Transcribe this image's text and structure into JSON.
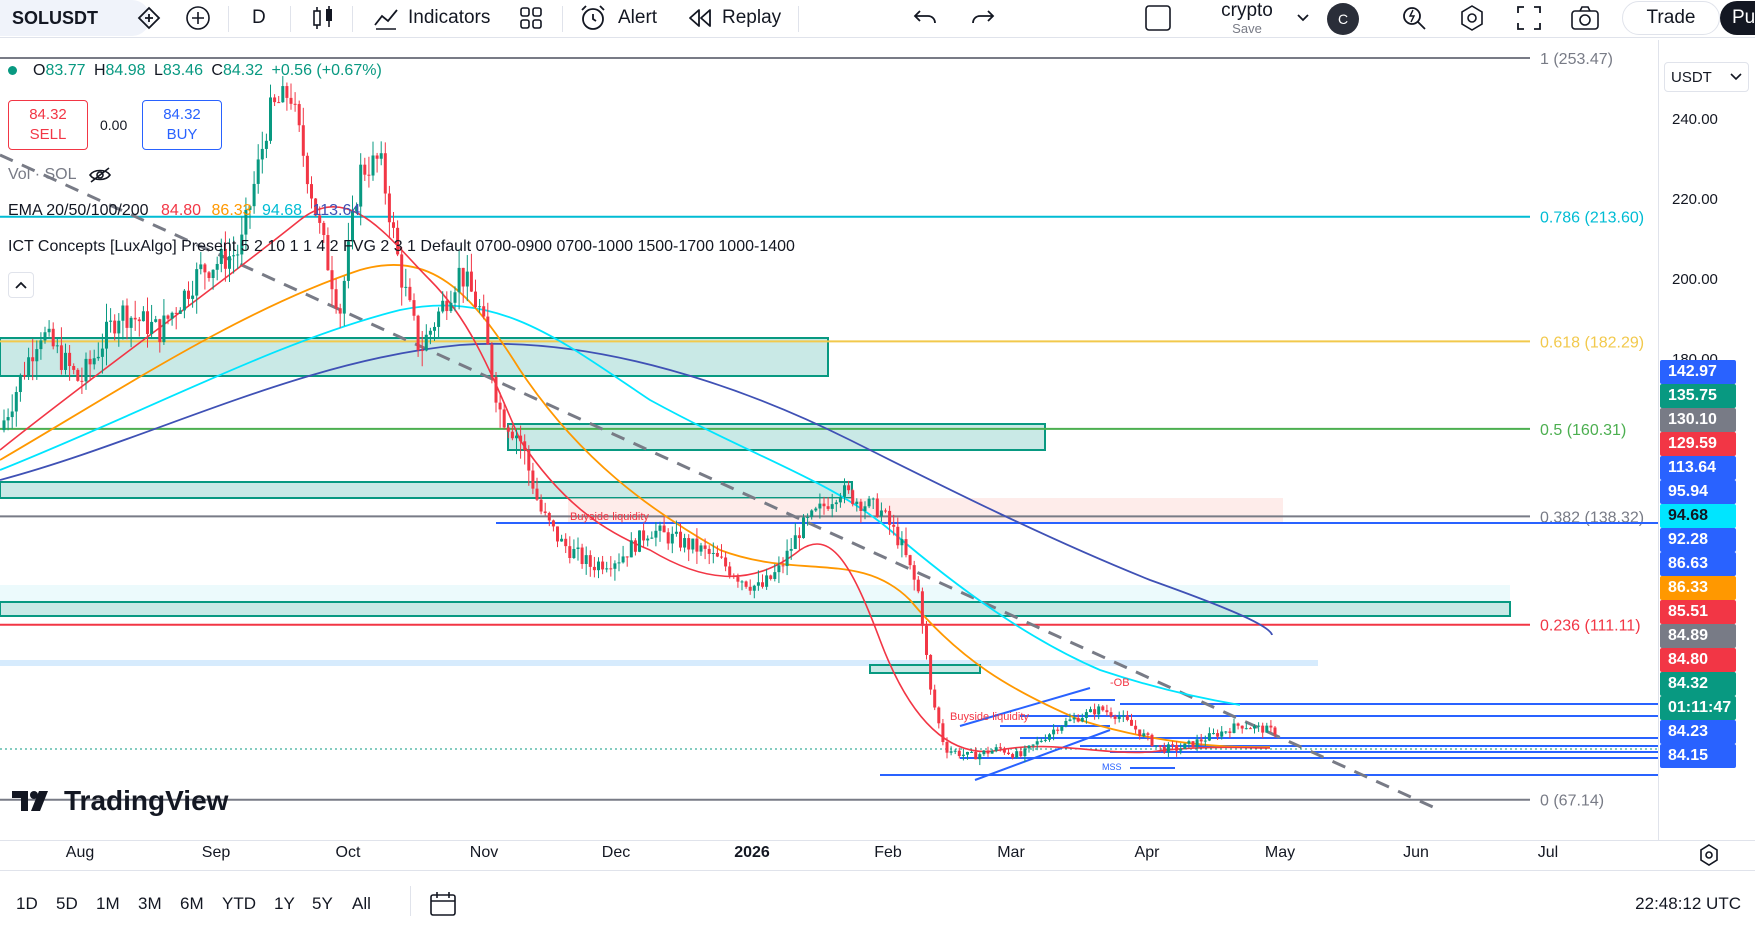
{
  "toolbar": {
    "symbol": "SOLUSDT",
    "interval": "D",
    "indicators_label": "Indicators",
    "alert_label": "Alert",
    "replay_label": "Replay",
    "layout_name": "crypto",
    "layout_save": "Save",
    "avatar_letter": "C",
    "trade_label": "Trade",
    "publish_label": "Pu"
  },
  "legend": {
    "ohlc": {
      "o_label": "O",
      "o": "83.77",
      "h_label": "H",
      "h": "84.98",
      "l_label": "L",
      "l": "83.46",
      "c_label": "C",
      "c": "84.32",
      "change": "+0.56 (+0.67%)"
    },
    "sell_price": "84.32",
    "sell_label": "SELL",
    "spread": "0.00",
    "buy_price": "84.32",
    "buy_label": "BUY",
    "volume": "Vol · SOL",
    "ema_label": "EMA 20/50/100/200",
    "ema_values": [
      "84.80",
      "86.33",
      "94.68",
      "113.64"
    ],
    "ict_label": "ICT Concepts [LuxAlgo] Present 5 2 10 1 1 4 2 FVG 2 3 1 Default 0700-0900 0700-1000 1500-1700 1000-1400"
  },
  "annotations": {
    "buyside1": "Buyside liquidity",
    "buyside2": "Buyside liquidity",
    "ob": "-OB",
    "mss": "MSS"
  },
  "fib_levels": [
    {
      "label": "1 (253.47)",
      "price": 253.47,
      "color": "#787b86"
    },
    {
      "label": "0.786 (213.60)",
      "price": 213.6,
      "color": "#00bcd4"
    },
    {
      "label": "0.618 (182.29)",
      "price": 182.29,
      "color": "#f2c94c"
    },
    {
      "label": "0.5 (160.31)",
      "price": 160.31,
      "color": "#4caf50"
    },
    {
      "label": "0.382 (138.32)",
      "price": 138.32,
      "color": "#787b86"
    },
    {
      "label": "0.236 (111.11)",
      "price": 111.11,
      "color": "#f23645"
    },
    {
      "label": "0 (67.14)",
      "price": 67.14,
      "color": "#787b86"
    }
  ],
  "price_scale": {
    "currency": "USDT",
    "ticks": [
      "240.00",
      "220.00",
      "200.00",
      "180.00"
    ],
    "labels": [
      {
        "value": "142.97",
        "bg": "#2962ff"
      },
      {
        "value": "135.75",
        "bg": "#089981"
      },
      {
        "value": "130.10",
        "bg": "#787b86"
      },
      {
        "value": "129.59",
        "bg": "#f23645"
      },
      {
        "value": "113.64",
        "bg": "#2962ff"
      },
      {
        "value": "95.94",
        "bg": "#2962ff"
      },
      {
        "value": "94.68",
        "bg": "#00e5ff"
      },
      {
        "value": "92.28",
        "bg": "#2962ff"
      },
      {
        "value": "86.63",
        "bg": "#2962ff"
      },
      {
        "value": "86.33",
        "bg": "#ff9800"
      },
      {
        "value": "85.51",
        "bg": "#f23645"
      },
      {
        "value": "84.89",
        "bg": "#787b86"
      },
      {
        "value": "84.80",
        "bg": "#f23645"
      },
      {
        "value": "84.32",
        "bg": "#089981"
      },
      {
        "value": "01:11:47",
        "bg": "#089981"
      },
      {
        "value": "84.23",
        "bg": "#2962ff"
      },
      {
        "value": "84.15",
        "bg": "#2962ff"
      }
    ]
  },
  "time_axis": [
    "Aug",
    "Sep",
    "Oct",
    "Nov",
    "Dec",
    "2026",
    "Feb",
    "Mar",
    "Apr",
    "May",
    "Jun",
    "Jul"
  ],
  "ranges": [
    "1D",
    "5D",
    "1M",
    "3M",
    "6M",
    "YTD",
    "1Y",
    "5Y",
    "All"
  ],
  "clock": "22:48:12 UTC",
  "watermark": "TradingView",
  "colors": {
    "up": "#089981",
    "down": "#f23645",
    "ema20": "#f23645",
    "ema50": "#ff9800",
    "ema100": "#00e5ff",
    "ema200": "#3f51b5",
    "zone": "#b2dfdb",
    "zone_border": "#089981",
    "level": "#2962ff"
  },
  "chart_data": {
    "type": "candlestick",
    "symbol": "SOLUSDT",
    "interval": "D",
    "x": [
      "Aug",
      "Sep",
      "Oct",
      "Nov",
      "Dec",
      "2026",
      "Feb",
      "Mar",
      "Apr",
      "May"
    ],
    "approx_monthly_close": [
      185,
      205,
      220,
      165,
      130,
      135,
      98,
      88,
      82,
      84.32
    ],
    "ylim": [
      62,
      258
    ],
    "y_ticks": [
      180,
      200,
      220,
      240
    ],
    "last_price": 84.32
  }
}
